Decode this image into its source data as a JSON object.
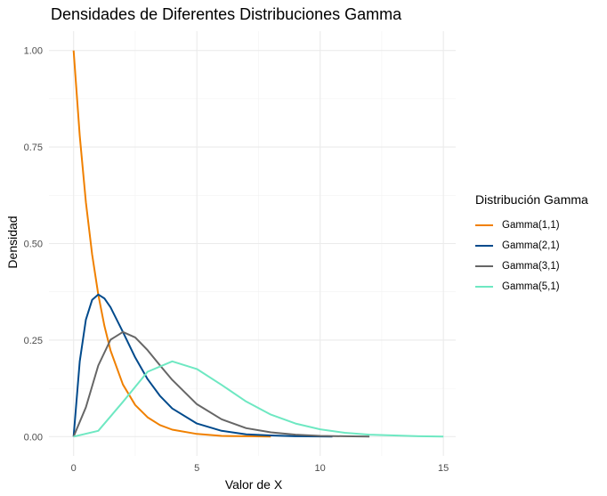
{
  "chart_data": {
    "type": "line",
    "title": "Densidades de Diferentes Distribuciones Gamma",
    "xlabel": "Valor de X",
    "ylabel": "Densidad",
    "xlim": [
      -1,
      15.5
    ],
    "ylim": [
      -0.05,
      1.05
    ],
    "x_ticks": [
      0,
      5,
      10,
      15
    ],
    "x_tick_labels": [
      "0",
      "5",
      "10",
      "15"
    ],
    "y_ticks": [
      0,
      0.25,
      0.5,
      0.75,
      1.0
    ],
    "y_tick_labels": [
      "0.00",
      "0.25",
      "0.50",
      "0.75",
      "1.00"
    ],
    "grid": true,
    "legend": {
      "title": "Distribución Gamma",
      "position": "right"
    },
    "series": [
      {
        "name": "Gamma(1,1)",
        "color": "#F08000",
        "x": [
          0,
          0.25,
          0.5,
          0.75,
          1,
          1.25,
          1.5,
          2,
          2.5,
          3,
          3.5,
          4,
          5,
          6,
          7,
          8
        ],
        "y": [
          1.0,
          0.779,
          0.607,
          0.472,
          0.368,
          0.287,
          0.223,
          0.135,
          0.082,
          0.05,
          0.03,
          0.018,
          0.007,
          0.002,
          0.001,
          0.0
        ]
      },
      {
        "name": "Gamma(2,1)",
        "color": "#004A8C",
        "x": [
          0,
          0.25,
          0.5,
          0.75,
          1,
          1.25,
          1.5,
          2,
          2.5,
          3,
          3.5,
          4,
          5,
          6,
          7,
          8,
          9,
          10.5
        ],
        "y": [
          0.0,
          0.195,
          0.303,
          0.354,
          0.368,
          0.358,
          0.335,
          0.271,
          0.205,
          0.149,
          0.106,
          0.073,
          0.034,
          0.015,
          0.006,
          0.003,
          0.001,
          0.0
        ]
      },
      {
        "name": "Gamma(3,1)",
        "color": "#666666",
        "x": [
          0,
          0.5,
          1,
          1.5,
          2,
          2.5,
          3,
          3.5,
          4,
          5,
          6,
          7,
          8,
          9,
          10,
          11,
          12
        ],
        "y": [
          0.0,
          0.076,
          0.184,
          0.251,
          0.271,
          0.257,
          0.224,
          0.185,
          0.147,
          0.084,
          0.045,
          0.022,
          0.011,
          0.005,
          0.002,
          0.001,
          0.0
        ]
      },
      {
        "name": "Gamma(5,1)",
        "color": "#6EE8C2",
        "x": [
          0,
          1,
          2,
          3,
          4,
          5,
          6,
          7,
          8,
          9,
          10,
          11,
          12,
          13,
          14,
          15
        ],
        "y": [
          0.0,
          0.015,
          0.09,
          0.168,
          0.195,
          0.175,
          0.134,
          0.091,
          0.057,
          0.034,
          0.019,
          0.01,
          0.005,
          0.003,
          0.001,
          0.0
        ]
      }
    ]
  }
}
